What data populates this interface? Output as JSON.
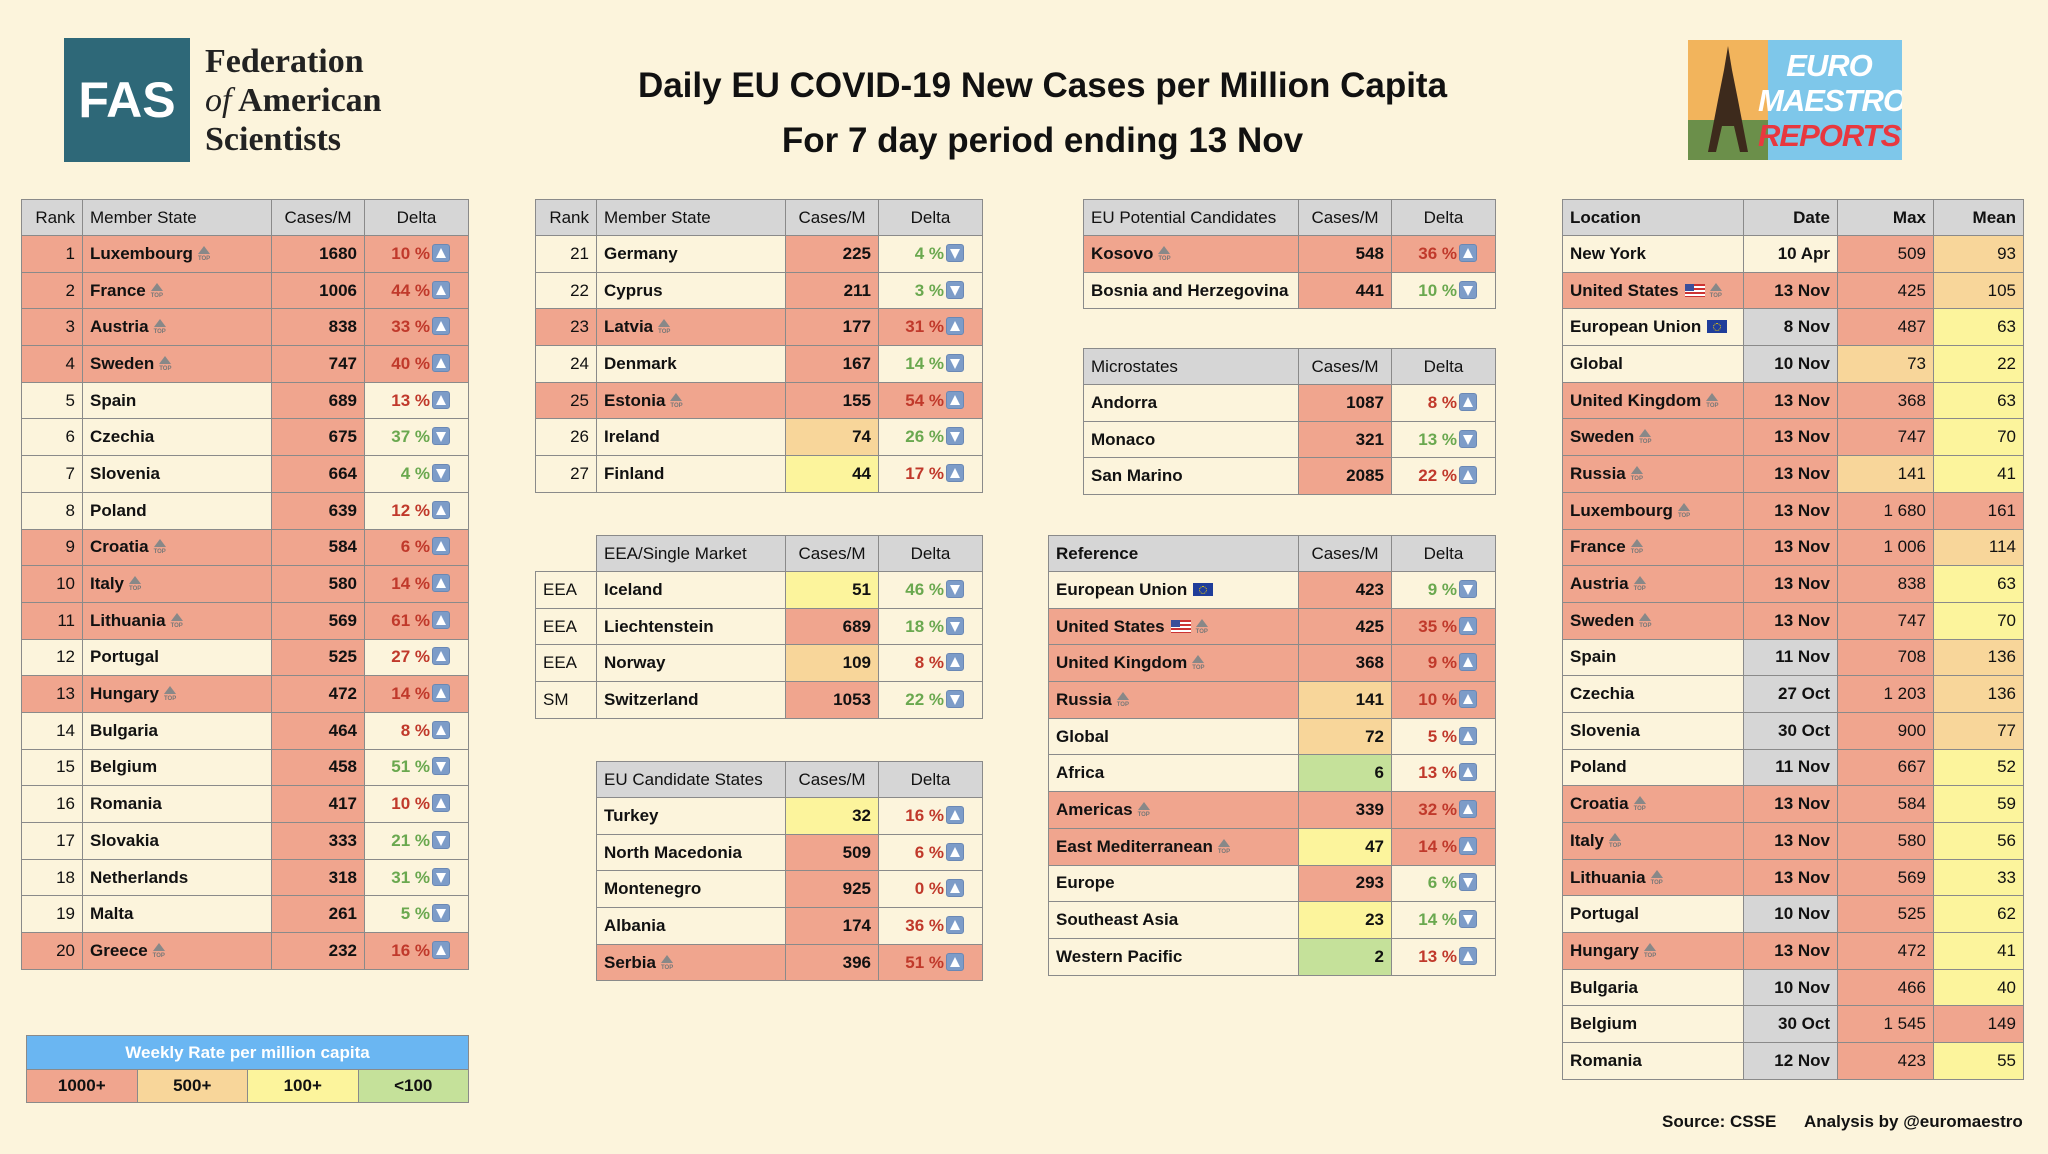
{
  "header": {
    "title_line1": "Daily EU COVID-19 New Cases per Million Capita",
    "title_line2": "For 7 day period ending 13 Nov"
  },
  "fas_logo": {
    "abbr": "FAS",
    "line1": "Federation",
    "line2_italic": "of",
    "line2": "American",
    "line3": "Scientists"
  },
  "euro_logo": {
    "line1": "EURO",
    "line2": "MAESTRO",
    "line3": "REPORTS",
    "icon": "eiffel-tower-icon"
  },
  "colors": {
    "r1": "#f0a58e",
    "r2": "#f8d69a",
    "r3": "#fcf49c",
    "r4": "#c5e19a",
    "delta_up": "#c0392b",
    "delta_down": "#6aa84f"
  },
  "member_headers": [
    "Rank",
    "Member State",
    "Cases/M",
    "Delta"
  ],
  "member_table_1": [
    {
      "rank": "1",
      "name": "Luxembourg",
      "top": true,
      "cases": "1680",
      "delta": "10 %",
      "dir": "up",
      "band": "r1"
    },
    {
      "rank": "2",
      "name": "France",
      "top": true,
      "cases": "1006",
      "delta": "44 %",
      "dir": "up",
      "band": "r1"
    },
    {
      "rank": "3",
      "name": "Austria",
      "top": true,
      "cases": "838",
      "delta": "33 %",
      "dir": "up",
      "band": "r1"
    },
    {
      "rank": "4",
      "name": "Sweden",
      "top": true,
      "cases": "747",
      "delta": "40 %",
      "dir": "up",
      "band": "r1"
    },
    {
      "rank": "5",
      "name": "Spain",
      "top": false,
      "cases": "689",
      "delta": "13 %",
      "dir": "up",
      "band": "r1"
    },
    {
      "rank": "6",
      "name": "Czechia",
      "top": false,
      "cases": "675",
      "delta": "37 %",
      "dir": "down",
      "band": "r1"
    },
    {
      "rank": "7",
      "name": "Slovenia",
      "top": false,
      "cases": "664",
      "delta": "4 %",
      "dir": "down",
      "band": "r1"
    },
    {
      "rank": "8",
      "name": "Poland",
      "top": false,
      "cases": "639",
      "delta": "12 %",
      "dir": "up",
      "band": "r1"
    },
    {
      "rank": "9",
      "name": "Croatia",
      "top": true,
      "cases": "584",
      "delta": "6 %",
      "dir": "up",
      "band": "r1"
    },
    {
      "rank": "10",
      "name": "Italy",
      "top": true,
      "cases": "580",
      "delta": "14 %",
      "dir": "up",
      "band": "r1"
    },
    {
      "rank": "11",
      "name": "Lithuania",
      "top": true,
      "cases": "569",
      "delta": "61 %",
      "dir": "up",
      "band": "r1"
    },
    {
      "rank": "12",
      "name": "Portugal",
      "top": false,
      "cases": "525",
      "delta": "27 %",
      "dir": "up",
      "band": "r1"
    },
    {
      "rank": "13",
      "name": "Hungary",
      "top": true,
      "cases": "472",
      "delta": "14 %",
      "dir": "up",
      "band": "r1"
    },
    {
      "rank": "14",
      "name": "Bulgaria",
      "top": false,
      "cases": "464",
      "delta": "8 %",
      "dir": "up",
      "band": "r1"
    },
    {
      "rank": "15",
      "name": "Belgium",
      "top": false,
      "cases": "458",
      "delta": "51 %",
      "dir": "down",
      "band": "r1"
    },
    {
      "rank": "16",
      "name": "Romania",
      "top": false,
      "cases": "417",
      "delta": "10 %",
      "dir": "up",
      "band": "r1"
    },
    {
      "rank": "17",
      "name": "Slovakia",
      "top": false,
      "cases": "333",
      "delta": "21 %",
      "dir": "down",
      "band": "r1"
    },
    {
      "rank": "18",
      "name": "Netherlands",
      "top": false,
      "cases": "318",
      "delta": "31 %",
      "dir": "down",
      "band": "r1"
    },
    {
      "rank": "19",
      "name": "Malta",
      "top": false,
      "cases": "261",
      "delta": "5 %",
      "dir": "down",
      "band": "r1"
    },
    {
      "rank": "20",
      "name": "Greece",
      "top": true,
      "cases": "232",
      "delta": "16 %",
      "dir": "up",
      "band": "r1"
    }
  ],
  "member_table_2": [
    {
      "rank": "21",
      "name": "Germany",
      "top": false,
      "cases": "225",
      "delta": "4 %",
      "dir": "down",
      "band": "r1"
    },
    {
      "rank": "22",
      "name": "Cyprus",
      "top": false,
      "cases": "211",
      "delta": "3 %",
      "dir": "down",
      "band": "r1"
    },
    {
      "rank": "23",
      "name": "Latvia",
      "top": true,
      "cases": "177",
      "delta": "31 %",
      "dir": "up",
      "band": "r1"
    },
    {
      "rank": "24",
      "name": "Denmark",
      "top": false,
      "cases": "167",
      "delta": "14 %",
      "dir": "down",
      "band": "r1"
    },
    {
      "rank": "25",
      "name": "Estonia",
      "top": true,
      "cases": "155",
      "delta": "54 %",
      "dir": "up",
      "band": "r1"
    },
    {
      "rank": "26",
      "name": "Ireland",
      "top": false,
      "cases": "74",
      "delta": "26 %",
      "dir": "down",
      "band": "r2"
    },
    {
      "rank": "27",
      "name": "Finland",
      "top": false,
      "cases": "44",
      "delta": "17 %",
      "dir": "up",
      "band": "r3"
    }
  ],
  "eea_headers": [
    "EEA/Single Market",
    "Cases/M",
    "Delta"
  ],
  "eea_table": [
    {
      "group": "EEA",
      "name": "Iceland",
      "top": false,
      "cases": "51",
      "delta": "46 %",
      "dir": "down",
      "band": "r3"
    },
    {
      "group": "EEA",
      "name": "Liechtenstein",
      "top": false,
      "cases": "689",
      "delta": "18 %",
      "dir": "down",
      "band": "r1"
    },
    {
      "group": "EEA",
      "name": "Norway",
      "top": false,
      "cases": "109",
      "delta": "8 %",
      "dir": "up",
      "band": "r2"
    },
    {
      "group": "SM",
      "name": "Switzerland",
      "top": false,
      "cases": "1053",
      "delta": "22 %",
      "dir": "down",
      "band": "r1"
    }
  ],
  "candidate_headers": [
    "EU Candidate States",
    "Cases/M",
    "Delta"
  ],
  "candidate_table": [
    {
      "name": "Turkey",
      "top": false,
      "cases": "32",
      "delta": "16 %",
      "dir": "up",
      "band": "r3"
    },
    {
      "name": "North Macedonia",
      "top": false,
      "cases": "509",
      "delta": "6 %",
      "dir": "up",
      "band": "r1"
    },
    {
      "name": "Montenegro",
      "top": false,
      "cases": "925",
      "delta": "0 %",
      "dir": "up",
      "band": "r1"
    },
    {
      "name": "Albania",
      "top": false,
      "cases": "174",
      "delta": "36 %",
      "dir": "up",
      "band": "r1"
    },
    {
      "name": "Serbia",
      "top": true,
      "cases": "396",
      "delta": "51 %",
      "dir": "up",
      "band": "r1"
    }
  ],
  "potential_headers": [
    "EU Potential Candidates",
    "Cases/M",
    "Delta"
  ],
  "potential_table": [
    {
      "name": "Kosovo",
      "top": true,
      "cases": "548",
      "delta": "36 %",
      "dir": "up",
      "band": "r1"
    },
    {
      "name": "Bosnia and Herzegovina",
      "top": false,
      "cases": "441",
      "delta": "10 %",
      "dir": "down",
      "band": "r1"
    }
  ],
  "micro_headers": [
    "Microstates",
    "Cases/M",
    "Delta"
  ],
  "micro_table": [
    {
      "name": "Andorra",
      "top": false,
      "cases": "1087",
      "delta": "8 %",
      "dir": "up",
      "band": "r1"
    },
    {
      "name": "Monaco",
      "top": false,
      "cases": "321",
      "delta": "13 %",
      "dir": "down",
      "band": "r1"
    },
    {
      "name": "San Marino",
      "top": false,
      "cases": "2085",
      "delta": "22 %",
      "dir": "up",
      "band": "r1"
    }
  ],
  "reference_headers": [
    "Reference",
    "Cases/M",
    "Delta"
  ],
  "reference_table": [
    {
      "name": "European Union",
      "flag": "eu",
      "top": false,
      "cases": "423",
      "delta": "9 %",
      "dir": "down",
      "band": "r1"
    },
    {
      "name": "United States",
      "flag": "us",
      "top": true,
      "cases": "425",
      "delta": "35 %",
      "dir": "up",
      "band": "r1"
    },
    {
      "name": "United Kingdom",
      "flag": "",
      "top": true,
      "cases": "368",
      "delta": "9 %",
      "dir": "up",
      "band": "r1"
    },
    {
      "name": "Russia",
      "flag": "",
      "top": true,
      "cases": "141",
      "delta": "10 %",
      "dir": "up",
      "band": "r2"
    },
    {
      "name": "Global",
      "flag": "",
      "top": false,
      "cases": "72",
      "delta": "5 %",
      "dir": "up",
      "band": "r2"
    },
    {
      "name": "Africa",
      "flag": "",
      "top": false,
      "cases": "6",
      "delta": "13 %",
      "dir": "up",
      "band": "r4"
    },
    {
      "name": "Americas",
      "flag": "",
      "top": true,
      "cases": "339",
      "delta": "32 %",
      "dir": "up",
      "band": "r1"
    },
    {
      "name": "East Mediterranean",
      "flag": "",
      "top": true,
      "cases": "47",
      "delta": "14 %",
      "dir": "up",
      "band": "r3"
    },
    {
      "name": "Europe",
      "flag": "",
      "top": false,
      "cases": "293",
      "delta": "6 %",
      "dir": "down",
      "band": "r1"
    },
    {
      "name": "Southeast Asia",
      "flag": "",
      "top": false,
      "cases": "23",
      "delta": "14 %",
      "dir": "down",
      "band": "r3"
    },
    {
      "name": "Western Pacific",
      "flag": "",
      "top": false,
      "cases": "2",
      "delta": "13 %",
      "dir": "up",
      "band": "r4"
    }
  ],
  "peak_headers": [
    "Location",
    "Date",
    "Max",
    "Mean"
  ],
  "peak_table": [
    {
      "name": "New York",
      "flag": "",
      "top": false,
      "date": "10 Apr",
      "max": "509",
      "mean": "93",
      "row": "bg",
      "date_bg": "bg",
      "max_bg": "r1",
      "mean_bg": "r2"
    },
    {
      "name": "United States",
      "flag": "us",
      "top": true,
      "date": "13 Nov",
      "max": "425",
      "mean": "105",
      "row": "r1",
      "date_bg": "r1",
      "max_bg": "r1",
      "mean_bg": "r2"
    },
    {
      "name": "European Union",
      "flag": "eu",
      "top": false,
      "date": "8 Nov",
      "max": "487",
      "mean": "63",
      "row": "bg",
      "date_bg": "gray",
      "max_bg": "r1",
      "mean_bg": "r3"
    },
    {
      "name": "Global",
      "flag": "",
      "top": false,
      "date": "10 Nov",
      "max": "73",
      "mean": "22",
      "row": "bg",
      "date_bg": "gray",
      "max_bg": "r2",
      "mean_bg": "r3"
    },
    {
      "name": "United Kingdom",
      "flag": "",
      "top": true,
      "date": "13 Nov",
      "max": "368",
      "mean": "63",
      "row": "r1",
      "date_bg": "r1",
      "max_bg": "r1",
      "mean_bg": "r3"
    },
    {
      "name": "Sweden",
      "flag": "",
      "top": true,
      "date": "13 Nov",
      "max": "747",
      "mean": "70",
      "row": "r1",
      "date_bg": "r1",
      "max_bg": "r1",
      "mean_bg": "r3"
    },
    {
      "name": "Russia",
      "flag": "",
      "top": true,
      "date": "13 Nov",
      "max": "141",
      "mean": "41",
      "row": "r1",
      "date_bg": "r1",
      "max_bg": "r2",
      "mean_bg": "r3"
    },
    {
      "name": "Luxembourg",
      "flag": "",
      "top": true,
      "date": "13 Nov",
      "max": "1 680",
      "mean": "161",
      "row": "r1",
      "date_bg": "r1",
      "max_bg": "r1",
      "mean_bg": "r1"
    },
    {
      "name": "France",
      "flag": "",
      "top": true,
      "date": "13 Nov",
      "max": "1 006",
      "mean": "114",
      "row": "r1",
      "date_bg": "r1",
      "max_bg": "r1",
      "mean_bg": "r2"
    },
    {
      "name": "Austria",
      "flag": "",
      "top": true,
      "date": "13 Nov",
      "max": "838",
      "mean": "63",
      "row": "r1",
      "date_bg": "r1",
      "max_bg": "r1",
      "mean_bg": "r3"
    },
    {
      "name": "Sweden",
      "flag": "",
      "top": true,
      "date": "13 Nov",
      "max": "747",
      "mean": "70",
      "row": "r1",
      "date_bg": "r1",
      "max_bg": "r1",
      "mean_bg": "r3"
    },
    {
      "name": "Spain",
      "flag": "",
      "top": false,
      "date": "11 Nov",
      "max": "708",
      "mean": "136",
      "row": "bg",
      "date_bg": "gray",
      "max_bg": "r1",
      "mean_bg": "r2"
    },
    {
      "name": "Czechia",
      "flag": "",
      "top": false,
      "date": "27 Oct",
      "max": "1 203",
      "mean": "136",
      "row": "bg",
      "date_bg": "gray",
      "max_bg": "r1",
      "mean_bg": "r2"
    },
    {
      "name": "Slovenia",
      "flag": "",
      "top": false,
      "date": "30 Oct",
      "max": "900",
      "mean": "77",
      "row": "bg",
      "date_bg": "gray",
      "max_bg": "r1",
      "mean_bg": "r2"
    },
    {
      "name": "Poland",
      "flag": "",
      "top": false,
      "date": "11 Nov",
      "max": "667",
      "mean": "52",
      "row": "bg",
      "date_bg": "gray",
      "max_bg": "r1",
      "mean_bg": "r3"
    },
    {
      "name": "Croatia",
      "flag": "",
      "top": true,
      "date": "13 Nov",
      "max": "584",
      "mean": "59",
      "row": "r1",
      "date_bg": "r1",
      "max_bg": "r1",
      "mean_bg": "r3"
    },
    {
      "name": "Italy",
      "flag": "",
      "top": true,
      "date": "13 Nov",
      "max": "580",
      "mean": "56",
      "row": "r1",
      "date_bg": "r1",
      "max_bg": "r1",
      "mean_bg": "r3"
    },
    {
      "name": "Lithuania",
      "flag": "",
      "top": true,
      "date": "13 Nov",
      "max": "569",
      "mean": "33",
      "row": "r1",
      "date_bg": "r1",
      "max_bg": "r1",
      "mean_bg": "r3"
    },
    {
      "name": "Portugal",
      "flag": "",
      "top": false,
      "date": "10 Nov",
      "max": "525",
      "mean": "62",
      "row": "bg",
      "date_bg": "gray",
      "max_bg": "r1",
      "mean_bg": "r3"
    },
    {
      "name": "Hungary",
      "flag": "",
      "top": true,
      "date": "13 Nov",
      "max": "472",
      "mean": "41",
      "row": "r1",
      "date_bg": "r1",
      "max_bg": "r1",
      "mean_bg": "r3"
    },
    {
      "name": "Bulgaria",
      "flag": "",
      "top": false,
      "date": "10 Nov",
      "max": "466",
      "mean": "40",
      "row": "bg",
      "date_bg": "gray",
      "max_bg": "r1",
      "mean_bg": "r3"
    },
    {
      "name": "Belgium",
      "flag": "",
      "top": false,
      "date": "30 Oct",
      "max": "1 545",
      "mean": "149",
      "row": "bg",
      "date_bg": "gray",
      "max_bg": "r1",
      "mean_bg": "r1"
    },
    {
      "name": "Romania",
      "flag": "",
      "top": false,
      "date": "12 Nov",
      "max": "423",
      "mean": "55",
      "row": "bg",
      "date_bg": "gray",
      "max_bg": "r1",
      "mean_bg": "r3"
    }
  ],
  "legend": {
    "title": "Weekly Rate per million capita",
    "bands": [
      {
        "label": "1000+",
        "band": "r1"
      },
      {
        "label": "500+",
        "band": "r2"
      },
      {
        "label": "100+",
        "band": "r3"
      },
      {
        "label": "<100",
        "band": "r4"
      }
    ]
  },
  "footer": {
    "source": "Source: CSSE",
    "analysis": "Analysis by @euromaestro"
  }
}
